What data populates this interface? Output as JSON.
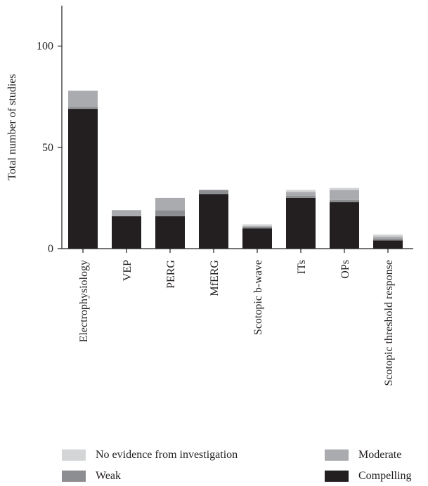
{
  "chart_data": {
    "type": "bar",
    "stacked": true,
    "ylabel": "Total number of studies",
    "ylim": [
      0,
      120
    ],
    "yticks": [
      0,
      50,
      100
    ],
    "grid": false,
    "categories": [
      "Electrophysiology",
      "VEP",
      "PERG",
      "MfERG",
      "Scotopic b-wave",
      "ITs",
      "OPs",
      "Scotopic threshold response"
    ],
    "series": [
      {
        "name": "Compelling",
        "color": "#231f20",
        "values": [
          69,
          16,
          16,
          27,
          10,
          25,
          23,
          4
        ]
      },
      {
        "name": "Weak",
        "color": "#8d8e91",
        "values": [
          1,
          0,
          3,
          2,
          1,
          1,
          1,
          1
        ]
      },
      {
        "name": "Moderate",
        "color": "#a9abae",
        "values": [
          8,
          3,
          6,
          0,
          0,
          2,
          5,
          1
        ]
      },
      {
        "name": "No evidence from investigation",
        "color": "#d4d5d6",
        "values": [
          0,
          0,
          0,
          0,
          1,
          1,
          1,
          1
        ]
      }
    ],
    "legend": {
      "position": "bottom",
      "items": [
        {
          "label": "No evidence from investigation",
          "color": "#d4d5d6"
        },
        {
          "label": "Moderate",
          "color": "#a9abae"
        },
        {
          "label": "Weak",
          "color": "#8d8e91"
        },
        {
          "label": "Compelling",
          "color": "#231f20"
        }
      ]
    }
  }
}
